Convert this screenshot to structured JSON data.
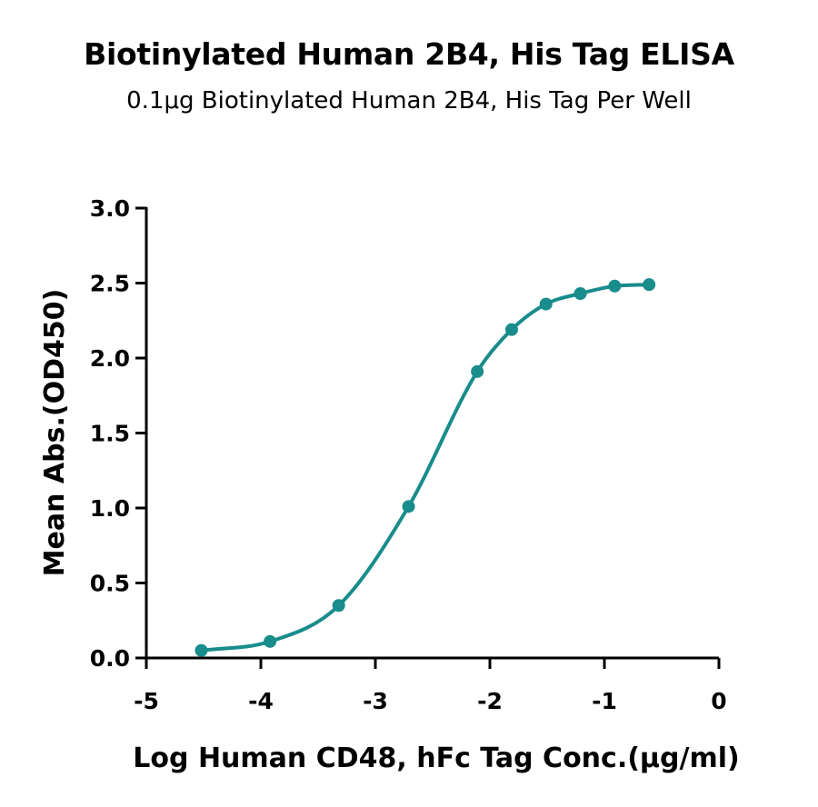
{
  "chart_data": {
    "type": "line",
    "title": "Biotinylated Human 2B4, His Tag ELISA",
    "subtitle": "0.1μg Biotinylated Human 2B4, His Tag Per Well",
    "xlabel": "Log Human CD48, hFc Tag Conc.(μg/ml)",
    "ylabel": "Mean Abs.(OD450)",
    "xlim": [
      -5,
      0
    ],
    "ylim": [
      0,
      3.0
    ],
    "x_ticks": [
      "-5",
      "-4",
      "-3",
      "-2",
      "-1",
      "0"
    ],
    "y_ticks": [
      "0.0",
      "0.5",
      "1.0",
      "1.5",
      "2.0",
      "2.5",
      "3.0"
    ],
    "grid": false,
    "legend": "none",
    "series": [
      {
        "points": [
          {
            "x": -4.52,
            "y": 0.05
          },
          {
            "x": -3.92,
            "y": 0.11
          },
          {
            "x": -3.32,
            "y": 0.35
          },
          {
            "x": -2.71,
            "y": 1.01
          },
          {
            "x": -2.11,
            "y": 1.91
          },
          {
            "x": -1.81,
            "y": 2.19
          },
          {
            "x": -1.51,
            "y": 2.36
          },
          {
            "x": -1.21,
            "y": 2.43
          },
          {
            "x": -0.91,
            "y": 2.48
          },
          {
            "x": -0.61,
            "y": 2.49
          }
        ],
        "color": "#198c8c"
      }
    ]
  }
}
